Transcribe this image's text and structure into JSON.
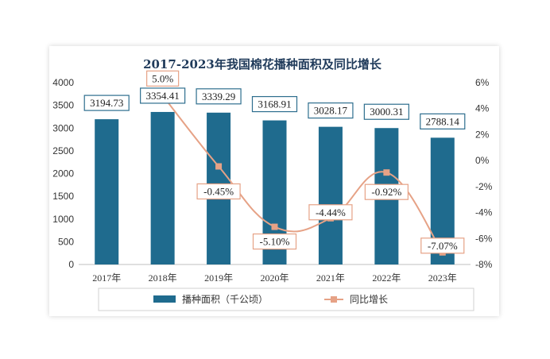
{
  "chart_data": {
    "type": "bar+line",
    "title": "2017-2023年我国棉花播种面积及同比增长",
    "categories": [
      "2017年",
      "2018年",
      "2019年",
      "2020年",
      "2021年",
      "2022年",
      "2023年"
    ],
    "series": [
      {
        "name": "播种面积（千公顷）",
        "type": "bar",
        "axis": "left",
        "values": [
          3194.73,
          3354.41,
          3339.29,
          3168.91,
          3028.17,
          3000.31,
          2788.14
        ],
        "labels": [
          "3194.73",
          "3354.41",
          "3339.29",
          "3168.91",
          "3028.17",
          "3000.31",
          "2788.14"
        ]
      },
      {
        "name": "同比增长",
        "type": "line",
        "axis": "right",
        "values": [
          null,
          5.0,
          -0.45,
          -5.1,
          -4.44,
          -0.92,
          -7.07
        ],
        "labels": [
          "",
          "5.0%",
          "-0.45%",
          "-5.10%",
          "-4.44%",
          "-0.92%",
          "-7.07%"
        ]
      }
    ],
    "y_left": {
      "min": 0,
      "max": 4000,
      "ticks": [
        "0",
        "500",
        "1000",
        "1500",
        "2000",
        "2500",
        "3000",
        "3500",
        "4000"
      ]
    },
    "y_right": {
      "min": -8,
      "max": 6,
      "ticks": [
        "-8%",
        "-6%",
        "-4%",
        "-2%",
        "0%",
        "2%",
        "4%",
        "6%"
      ]
    },
    "legend": {
      "position": "bottom",
      "bar_label": "播种面积（千公顷）",
      "line_label": "同比增长"
    },
    "colors": {
      "bar": "#1f6b8e",
      "line": "#e6a286",
      "label_border": "#2e6e8e",
      "line_label_border": "#e6a286",
      "title": "#1f3a5a",
      "text": "#333333"
    }
  }
}
